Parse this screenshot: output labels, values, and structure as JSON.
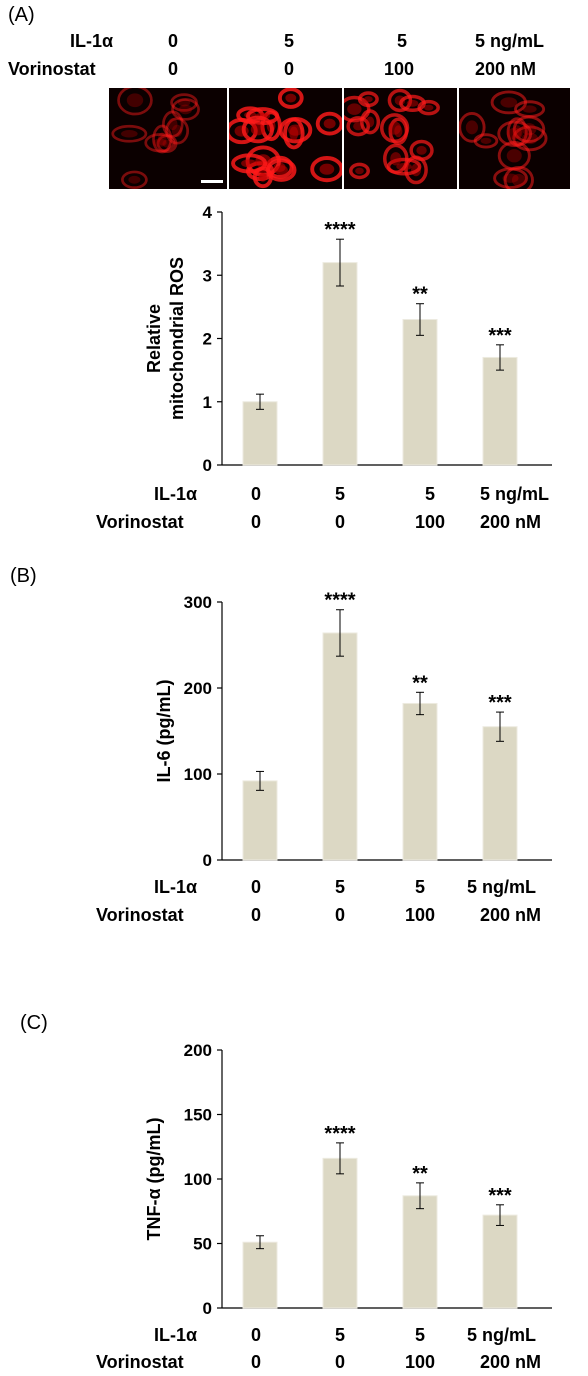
{
  "panel_labels": {
    "a": "(A)",
    "b": "(B)",
    "c": "(C)"
  },
  "treatment_rows": {
    "row1_label": "IL-1α",
    "row2_label": "Vorinostat",
    "il1a": [
      "0",
      "5",
      "5",
      "5 ng/mL"
    ],
    "vorinostat": [
      "0",
      "0",
      "100",
      "200 nM"
    ]
  },
  "microscopy": {
    "tiles": [
      "control",
      "il1a",
      "il1a-vorinostat-100",
      "il1a-vorinostat-200"
    ],
    "color": "#ff1a1a"
  },
  "chart_data": [
    {
      "type": "bar",
      "ylabel_line1": "Relative",
      "ylabel_line2": "mitochondrial ROS",
      "ylim": [
        0,
        4
      ],
      "yticks": [
        "0",
        "1",
        "2",
        "3",
        "4"
      ],
      "categories": [
        "0 / 0",
        "5 / 0",
        "5 / 100",
        "5 ng/mL / 200 nM"
      ],
      "values": [
        1.0,
        3.2,
        2.3,
        1.7
      ],
      "errors": [
        0.12,
        0.37,
        0.25,
        0.2
      ],
      "significance": [
        "",
        "****",
        "**",
        "***"
      ],
      "bar_color": "#dcd8c4"
    },
    {
      "type": "bar",
      "ylabel": "IL-6 (pg/mL)",
      "ylim": [
        0,
        300
      ],
      "yticks": [
        "0",
        "100",
        "200",
        "300"
      ],
      "categories": [
        "0 / 0",
        "5 / 0",
        "5 / 100",
        "5 ng/mL / 200 nM"
      ],
      "values": [
        92,
        264,
        182,
        155
      ],
      "errors": [
        11,
        27,
        13,
        17
      ],
      "significance": [
        "",
        "****",
        "**",
        "***"
      ],
      "bar_color": "#dcd8c4"
    },
    {
      "type": "bar",
      "ylabel": "TNF-α (pg/mL)",
      "ylim": [
        0,
        200
      ],
      "yticks": [
        "0",
        "50",
        "100",
        "150",
        "200"
      ],
      "categories": [
        "0 / 0",
        "5 / 0",
        "5 / 100",
        "5 ng/mL / 200 nM"
      ],
      "values": [
        51,
        116,
        87,
        72
      ],
      "errors": [
        5,
        12,
        10,
        8
      ],
      "significance": [
        "",
        "****",
        "**",
        "***"
      ],
      "bar_color": "#dcd8c4"
    }
  ]
}
